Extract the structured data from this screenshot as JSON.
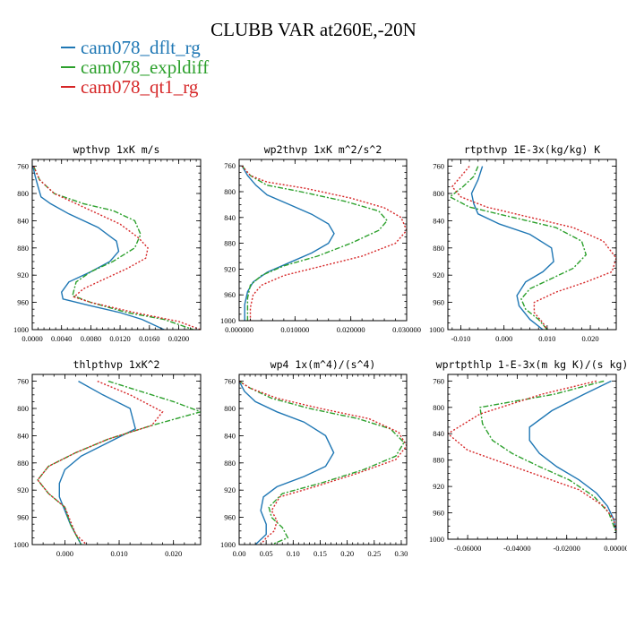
{
  "figure_title": "CLUBB VAR at260E,-20N",
  "legend": [
    {
      "label": "cam078_dflt_rg",
      "color": "#1f77b4",
      "dash": "solid"
    },
    {
      "label": "cam078_expldiff",
      "color": "#2ca02c",
      "dash": "dashdot"
    },
    {
      "label": "cam078_qt1_rg",
      "color": "#d62728",
      "dash": "dot"
    }
  ],
  "chart_data": [
    {
      "type": "line",
      "title": "wpthvp  1xK m/s",
      "xlim": [
        0,
        0.023
      ],
      "ylim": [
        1000,
        750
      ],
      "y_reversed": true,
      "xticks": [
        0,
        0.004,
        0.008,
        0.012,
        0.016,
        0.02
      ],
      "xtick_labels": [
        "0.0000",
        "0.0040",
        "0.0080",
        "0.0120",
        "0.0160",
        "0.0200"
      ],
      "yticks": [
        760,
        800,
        840,
        880,
        920,
        960,
        1000
      ],
      "ytick_labels": [
        "760",
        "800",
        "840",
        "880",
        "920",
        "960",
        "1000"
      ],
      "series": [
        {
          "name": "cam078_dflt_rg",
          "x": [
            0.0001,
            0.0004,
            0.0008,
            0.0012,
            0.0025,
            0.005,
            0.009,
            0.0115,
            0.0118,
            0.0106,
            0.008,
            0.005,
            0.004,
            0.0042,
            0.008,
            0.012,
            0.015,
            0.018
          ],
          "y": [
            760,
            775,
            790,
            805,
            815,
            830,
            850,
            870,
            885,
            900,
            915,
            930,
            945,
            955,
            965,
            975,
            985,
            1000
          ]
        },
        {
          "name": "cam078_expldiff",
          "x": [
            0.0002,
            0.001,
            0.003,
            0.007,
            0.011,
            0.014,
            0.0148,
            0.014,
            0.011,
            0.008,
            0.006,
            0.0055,
            0.008,
            0.013,
            0.018,
            0.022
          ],
          "y": [
            760,
            780,
            800,
            815,
            825,
            840,
            860,
            880,
            900,
            915,
            930,
            950,
            960,
            975,
            985,
            1000
          ]
        },
        {
          "name": "cam078_qt1_rg",
          "x": [
            0.0002,
            0.001,
            0.003,
            0.006,
            0.009,
            0.012,
            0.0145,
            0.0158,
            0.0155,
            0.013,
            0.01,
            0.007,
            0.0057,
            0.008,
            0.014,
            0.02,
            0.023
          ],
          "y": [
            760,
            780,
            800,
            815,
            830,
            845,
            865,
            880,
            895,
            910,
            925,
            940,
            952,
            960,
            975,
            988,
            1000
          ]
        }
      ]
    },
    {
      "type": "line",
      "title": "wp2thvp  1xK m^2/s^2",
      "xlim": [
        0,
        0.03
      ],
      "ylim": [
        1000,
        750
      ],
      "y_reversed": true,
      "xticks": [
        0,
        0.01,
        0.02,
        0.03
      ],
      "xtick_labels": [
        "0.000000",
        "0.010000",
        "0.020000",
        "0.030000"
      ],
      "yticks": [
        760,
        800,
        840,
        880,
        920,
        960,
        1000
      ],
      "ytick_labels": [
        "760",
        "800",
        "840",
        "880",
        "920",
        "960",
        "1000"
      ],
      "series": [
        {
          "name": "cam078_dflt_rg",
          "x": [
            0.0005,
            0.0015,
            0.003,
            0.005,
            0.009,
            0.013,
            0.016,
            0.017,
            0.016,
            0.013,
            0.009,
            0.005,
            0.0025,
            0.0015,
            0.001,
            0.001
          ],
          "y": [
            760,
            775,
            790,
            805,
            820,
            835,
            850,
            865,
            880,
            895,
            910,
            925,
            940,
            955,
            975,
            1000
          ]
        },
        {
          "name": "cam078_expldiff",
          "x": [
            0.0005,
            0.002,
            0.005,
            0.011,
            0.019,
            0.025,
            0.0265,
            0.025,
            0.02,
            0.014,
            0.008,
            0.004,
            0.002,
            0.0015,
            0.0015
          ],
          "y": [
            760,
            775,
            790,
            800,
            815,
            830,
            845,
            860,
            880,
            900,
            915,
            930,
            945,
            965,
            1000
          ]
        },
        {
          "name": "cam078_qt1_rg",
          "x": [
            0.0005,
            0.002,
            0.005,
            0.012,
            0.02,
            0.026,
            0.029,
            0.03,
            0.028,
            0.022,
            0.015,
            0.008,
            0.004,
            0.0025,
            0.002,
            0.002
          ],
          "y": [
            760,
            775,
            785,
            795,
            810,
            825,
            840,
            860,
            880,
            900,
            915,
            930,
            945,
            960,
            980,
            1000
          ]
        }
      ]
    },
    {
      "type": "line",
      "title": "rtpthvp  1E-3x(kg/kg) K",
      "xlim": [
        -0.013,
        0.026
      ],
      "ylim": [
        1000,
        750
      ],
      "y_reversed": true,
      "xticks": [
        -0.01,
        0,
        0.01,
        0.02
      ],
      "xtick_labels": [
        "-0.010",
        "0.000",
        "0.010",
        "0.020"
      ],
      "yticks": [
        760,
        800,
        840,
        880,
        920,
        960,
        1000
      ],
      "ytick_labels": [
        "760",
        "800",
        "840",
        "880",
        "920",
        "960",
        "1000"
      ],
      "series": [
        {
          "name": "cam078_dflt_rg",
          "x": [
            -0.005,
            -0.006,
            -0.0075,
            -0.007,
            -0.006,
            -0.001,
            0.006,
            0.011,
            0.0115,
            0.009,
            0.005,
            0.003,
            0.0035,
            0.006,
            0.009
          ],
          "y": [
            760,
            780,
            800,
            815,
            830,
            845,
            860,
            880,
            900,
            915,
            930,
            950,
            965,
            985,
            1000
          ]
        },
        {
          "name": "cam078_expldiff",
          "x": [
            -0.006,
            -0.007,
            -0.0095,
            -0.0125,
            -0.008,
            0.002,
            0.012,
            0.018,
            0.019,
            0.016,
            0.011,
            0.006,
            0.004,
            0.005,
            0.008,
            0.01
          ],
          "y": [
            760,
            775,
            790,
            805,
            820,
            835,
            850,
            870,
            890,
            910,
            925,
            940,
            955,
            970,
            985,
            1000
          ]
        },
        {
          "name": "cam078_qt1_rg",
          "x": [
            -0.008,
            -0.01,
            -0.012,
            -0.01,
            -0.004,
            0.006,
            0.016,
            0.023,
            0.026,
            0.025,
            0.019,
            0.012,
            0.007,
            0.007,
            0.009,
            0.01
          ],
          "y": [
            760,
            775,
            790,
            805,
            820,
            835,
            850,
            870,
            895,
            915,
            930,
            945,
            960,
            975,
            990,
            1000
          ]
        }
      ]
    },
    {
      "type": "line",
      "title": "thlpthvp  1xK^2",
      "xlim": [
        -0.006,
        0.025
      ],
      "ylim": [
        1000,
        750
      ],
      "y_reversed": true,
      "xticks": [
        0,
        0.01,
        0.02
      ],
      "xtick_labels": [
        "0.000",
        "0.010",
        "0.020"
      ],
      "yticks": [
        760,
        800,
        840,
        880,
        920,
        960,
        1000
      ],
      "ytick_labels": [
        "760",
        "800",
        "840",
        "880",
        "920",
        "960",
        "1000"
      ],
      "series": [
        {
          "name": "cam078_dflt_rg",
          "x": [
            0.0025,
            0.007,
            0.012,
            0.013,
            0.008,
            0.003,
            0.0,
            -0.001,
            -0.001,
            0.0,
            0.001,
            0.002,
            0.003
          ],
          "y": [
            760,
            780,
            800,
            830,
            850,
            870,
            890,
            910,
            930,
            950,
            970,
            985,
            1000
          ]
        },
        {
          "name": "cam078_expldiff",
          "x": [
            0.008,
            0.014,
            0.02,
            0.025,
            0.016,
            0.008,
            0.002,
            -0.003,
            -0.005,
            -0.003,
            0.0,
            0.001,
            0.003
          ],
          "y": [
            760,
            775,
            790,
            805,
            825,
            845,
            865,
            885,
            905,
            925,
            945,
            970,
            1000
          ]
        },
        {
          "name": "cam078_qt1_rg",
          "x": [
            0.006,
            0.012,
            0.018,
            0.016,
            0.008,
            0.002,
            -0.003,
            -0.005,
            -0.003,
            0.0,
            0.001,
            0.002,
            0.004
          ],
          "y": [
            760,
            780,
            805,
            825,
            845,
            865,
            885,
            905,
            925,
            945,
            965,
            985,
            1000
          ]
        }
      ]
    },
    {
      "type": "line",
      "title": "wp4  1x(m^4)/(s^4)",
      "xlim": [
        0,
        0.31
      ],
      "ylim": [
        1000,
        750
      ],
      "y_reversed": true,
      "xticks": [
        0,
        0.05,
        0.1,
        0.15,
        0.2,
        0.25,
        0.3
      ],
      "xtick_labels": [
        "0.00",
        "0.05",
        "0.10",
        "0.15",
        "0.20",
        "0.25",
        "0.30"
      ],
      "yticks": [
        760,
        800,
        840,
        880,
        920,
        960,
        1000
      ],
      "ytick_labels": [
        "760",
        "800",
        "840",
        "880",
        "920",
        "960",
        "1000"
      ],
      "series": [
        {
          "name": "cam078_dflt_rg",
          "x": [
            0.0,
            0.01,
            0.03,
            0.07,
            0.12,
            0.16,
            0.175,
            0.16,
            0.12,
            0.07,
            0.045,
            0.04,
            0.05,
            0.05,
            0.03
          ],
          "y": [
            760,
            775,
            790,
            805,
            820,
            840,
            865,
            885,
            900,
            915,
            930,
            950,
            970,
            985,
            1000
          ]
        },
        {
          "name": "cam078_expldiff",
          "x": [
            0.0,
            0.02,
            0.06,
            0.13,
            0.22,
            0.28,
            0.305,
            0.29,
            0.23,
            0.15,
            0.08,
            0.055,
            0.06,
            0.08,
            0.09,
            0.06
          ],
          "y": [
            760,
            770,
            785,
            800,
            815,
            830,
            850,
            870,
            890,
            910,
            925,
            945,
            960,
            975,
            990,
            1000
          ]
        },
        {
          "name": "cam078_qt1_rg",
          "x": [
            0.0,
            0.02,
            0.07,
            0.15,
            0.24,
            0.295,
            0.31,
            0.29,
            0.22,
            0.14,
            0.075,
            0.06,
            0.07,
            0.065,
            0.05,
            0.04
          ],
          "y": [
            760,
            770,
            785,
            800,
            815,
            835,
            855,
            875,
            895,
            915,
            930,
            950,
            965,
            980,
            990,
            1000
          ]
        }
      ]
    },
    {
      "type": "line",
      "title": "wprtpthlp  1-E-3x(m kg K)/(s kg)",
      "xlim": [
        -0.068,
        0
      ],
      "ylim": [
        1000,
        750
      ],
      "y_reversed": true,
      "xticks": [
        -0.06,
        -0.04,
        -0.02,
        0
      ],
      "xtick_labels": [
        "-0.06000",
        "-0.04000",
        "-0.02000",
        "0.00000"
      ],
      "yticks": [
        760,
        800,
        840,
        880,
        920,
        960,
        1000
      ],
      "ytick_labels": [
        "760",
        "800",
        "840",
        "880",
        "920",
        "960",
        "1000"
      ],
      "series": [
        {
          "name": "cam078_dflt_rg",
          "x": [
            -0.002,
            -0.013,
            -0.026,
            -0.035,
            -0.035,
            -0.031,
            -0.024,
            -0.015,
            -0.008,
            -0.0035,
            -0.001,
            0.0
          ],
          "y": [
            760,
            780,
            805,
            830,
            850,
            870,
            890,
            910,
            930,
            950,
            970,
            990
          ]
        },
        {
          "name": "cam078_expldiff",
          "x": [
            -0.005,
            -0.025,
            -0.055,
            -0.054,
            -0.05,
            -0.042,
            -0.031,
            -0.019,
            -0.009,
            -0.003,
            0.0
          ],
          "y": [
            760,
            780,
            800,
            825,
            850,
            870,
            890,
            910,
            935,
            960,
            990
          ]
        },
        {
          "name": "cam078_qt1_rg",
          "x": [
            -0.008,
            -0.03,
            -0.055,
            -0.068,
            -0.06,
            -0.045,
            -0.03,
            -0.015,
            -0.005,
            -0.001,
            0.0
          ],
          "y": [
            760,
            780,
            810,
            840,
            865,
            885,
            905,
            925,
            950,
            970,
            990
          ]
        }
      ]
    }
  ]
}
